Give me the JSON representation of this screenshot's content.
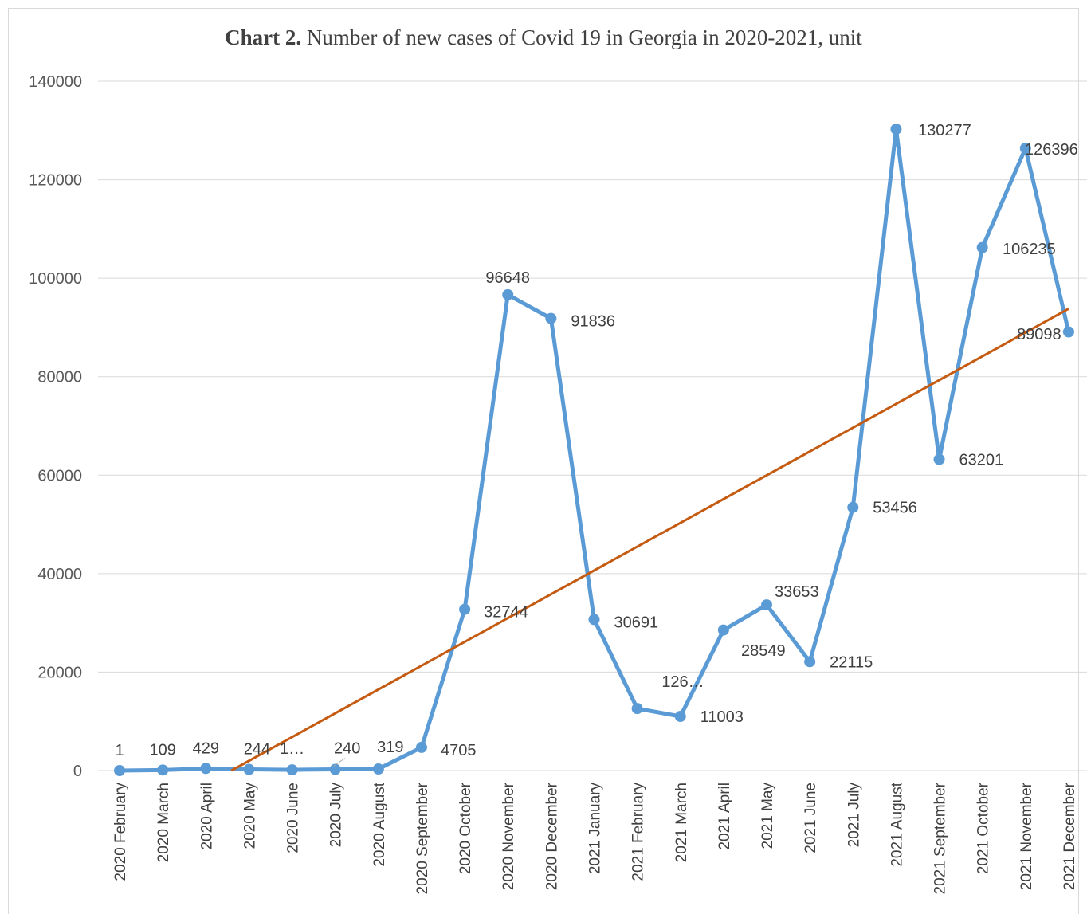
{
  "chart_data": {
    "type": "line",
    "title_bold": "Chart 2.",
    "title_rest": " Number of new cases of Covid 19 in Georgia in 2020-2021, unit",
    "ylim": [
      0,
      140000
    ],
    "yticks": [
      0,
      20000,
      40000,
      60000,
      80000,
      100000,
      120000,
      140000
    ],
    "grid": true,
    "categories": [
      "2020 February",
      "2020 March",
      "2020 April",
      "2020 May",
      "2020 June",
      "2020 July",
      "2020 August",
      "2020 September",
      "2020 October",
      "2020 November",
      "2020 December",
      "2021 January",
      "2021 February",
      "2021 March",
      "2021 April",
      "2021 May",
      "2021 June",
      "2021 July",
      "2021 August",
      "2021 September",
      "2021 October",
      "2021 November",
      "2021 December"
    ],
    "series": [
      {
        "values": [
          1,
          109,
          429,
          244,
          150,
          240,
          319,
          4705,
          32744,
          96648,
          91836,
          30691,
          12600,
          11003,
          28549,
          33653,
          22115,
          53456,
          130277,
          63201,
          106235,
          126396,
          89098
        ],
        "labels": [
          "1",
          "109",
          "429",
          "244",
          "1…",
          "240",
          "319",
          "4705",
          "32744",
          "96648",
          "91836",
          "30691",
          "126…",
          "11003",
          "28549",
          "33653",
          "22115",
          "53456",
          "130277",
          "63201",
          "106235",
          "126396",
          "89098"
        ],
        "color": "#5b9bd5"
      }
    ],
    "trendline": {
      "type": "linear",
      "color": "#c55a11"
    }
  }
}
